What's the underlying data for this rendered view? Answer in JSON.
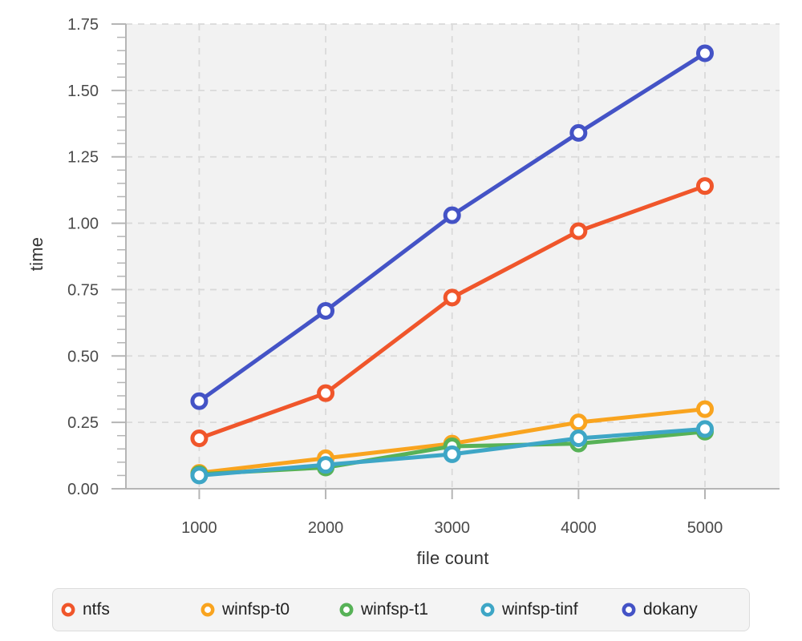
{
  "chart_data": {
    "type": "line",
    "xlabel": "file count",
    "ylabel": "time",
    "x": [
      1000,
      2000,
      3000,
      4000,
      5000
    ],
    "series": [
      {
        "name": "ntfs",
        "color": "#f0562b",
        "values": [
          0.19,
          0.36,
          0.72,
          0.97,
          1.14
        ]
      },
      {
        "name": "winfsp-t0",
        "color": "#f9a41f",
        "values": [
          0.06,
          0.115,
          0.17,
          0.25,
          0.3
        ]
      },
      {
        "name": "winfsp-t1",
        "color": "#57b257",
        "values": [
          0.055,
          0.08,
          0.16,
          0.17,
          0.215
        ]
      },
      {
        "name": "winfsp-tinf",
        "color": "#3ea6c6",
        "values": [
          0.05,
          0.09,
          0.13,
          0.19,
          0.225
        ]
      },
      {
        "name": "dokany",
        "color": "#4453c6",
        "values": [
          0.33,
          0.67,
          1.03,
          1.34,
          1.64
        ]
      }
    ],
    "xlim": [
      420,
      5590
    ],
    "ylim": [
      0,
      1.75
    ],
    "x_ticks": [
      1000,
      2000,
      3000,
      4000,
      5000
    ],
    "x_tick_labels": [
      "1000",
      "2000",
      "3000",
      "4000",
      "5000"
    ],
    "y_ticks": [
      0,
      0.25,
      0.5,
      0.75,
      1.0,
      1.25,
      1.5,
      1.75
    ],
    "y_tick_labels": [
      "0.00",
      "0.25",
      "0.50",
      "0.75",
      "1.00",
      "1.25",
      "1.50",
      "1.75"
    ],
    "y_minor_step": 0.05,
    "grid": true,
    "grid_style": "dashed",
    "legend_position": "bottom",
    "legend": [
      "ntfs",
      "winfsp-t0",
      "winfsp-t1",
      "winfsp-tinf",
      "dokany"
    ]
  },
  "styles": {
    "page_bg": "#ffffff",
    "plot_bg": "#f2f2f2",
    "grid": "#d9d9d9",
    "axis": "#b5b5b5",
    "tick_label": "#4a4a4a",
    "axis_title": "#333333",
    "legend_bg": "#f4f4f4",
    "legend_border": "#dcdcdc",
    "legend_text": "#222222",
    "marker_fill": "#ffffff"
  }
}
